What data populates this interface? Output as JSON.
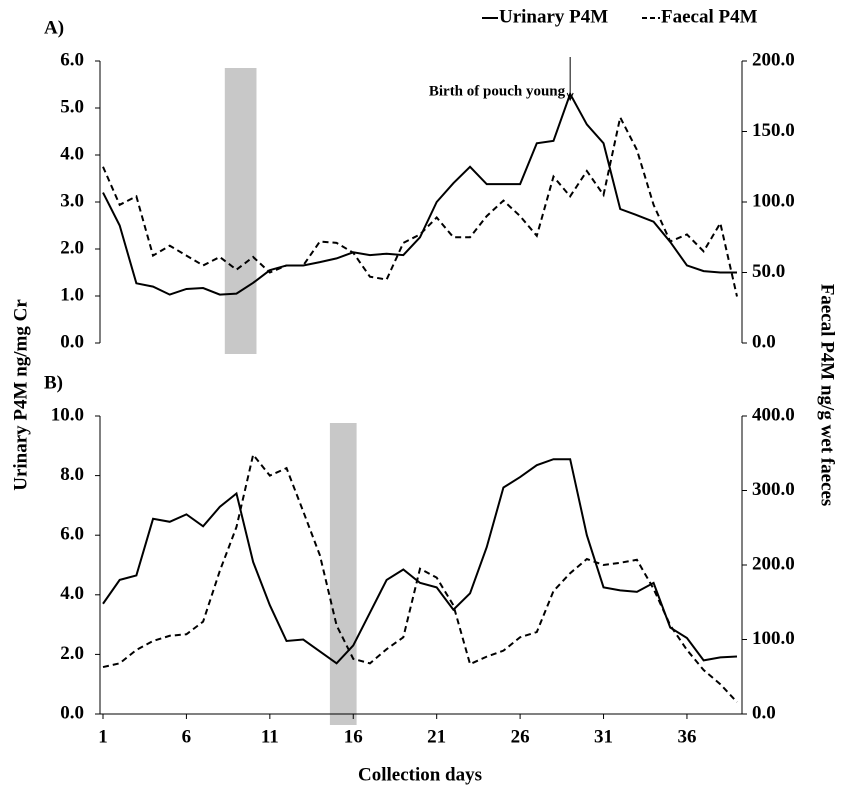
{
  "chart_data": [
    {
      "type": "line",
      "title": "A)",
      "ylabel": "Urinary P4M ng/mg Cr",
      "y2label": "Faecal P4M ng/g wet faeces",
      "x": [
        1,
        2,
        3,
        4,
        5,
        6,
        7,
        8,
        9,
        10,
        11,
        12,
        13,
        14,
        15,
        16,
        17,
        18,
        19,
        20,
        21,
        22,
        23,
        24,
        25,
        26,
        27,
        28,
        29,
        30,
        31,
        32,
        33,
        34,
        35,
        36,
        37,
        38,
        39
      ],
      "xlim": [
        1,
        39
      ],
      "ylim": [
        0,
        6
      ],
      "yticks": [
        {
          "value": 0,
          "label": "0.0"
        },
        {
          "value": 1,
          "label": "1.0"
        },
        {
          "value": 2,
          "label": "2.0"
        },
        {
          "value": 3,
          "label": "3.0"
        },
        {
          "value": 4,
          "label": "4.0"
        },
        {
          "value": 5,
          "label": "5.0"
        },
        {
          "value": 6,
          "label": "6.0"
        }
      ],
      "y2lim": [
        0,
        200
      ],
      "y2ticks": [
        {
          "value": 0,
          "label": "0.0"
        },
        {
          "value": 50,
          "label": "50.0"
        },
        {
          "value": 100,
          "label": "100.0"
        },
        {
          "value": 150,
          "label": "150.0"
        },
        {
          "value": 200,
          "label": "200.0"
        }
      ],
      "shade": [
        8.3,
        10.2
      ],
      "annotations": [
        {
          "text": "Birth of pouch young",
          "x": 29
        }
      ],
      "series": [
        {
          "name": "Urinary P4M",
          "color": "#000000",
          "style": "solid",
          "values": [
            3.2,
            2.5,
            1.27,
            1.2,
            1.03,
            1.15,
            1.17,
            1.03,
            1.05,
            1.28,
            1.55,
            1.65,
            1.65,
            1.72,
            1.8,
            1.93,
            1.87,
            1.9,
            1.87,
            2.25,
            3.0,
            3.4,
            3.75,
            3.38,
            3.38,
            3.38,
            4.25,
            4.3,
            5.3,
            4.65,
            4.25,
            2.85,
            2.72,
            2.58,
            2.15,
            1.65,
            1.53,
            1.5,
            1.5
          ]
        },
        {
          "name": "Faecal P4M",
          "color": "#000000",
          "style": "dashed",
          "axis": "y2",
          "values": [
            125,
            98,
            104,
            62,
            69,
            62,
            55,
            61,
            52,
            61,
            50,
            55,
            55,
            72,
            71,
            64,
            47,
            45,
            71,
            77,
            89,
            75,
            75,
            90,
            101,
            90,
            76,
            118,
            104,
            122,
            105,
            160,
            137,
            98,
            72,
            77,
            65,
            85,
            33
          ]
        }
      ]
    },
    {
      "type": "line",
      "title": "B)",
      "xlabel": "Collection days",
      "x": [
        1,
        2,
        3,
        4,
        5,
        6,
        7,
        8,
        9,
        10,
        11,
        12,
        13,
        14,
        15,
        16,
        17,
        18,
        19,
        20,
        21,
        22,
        23,
        24,
        25,
        26,
        27,
        28,
        29,
        30,
        31,
        32,
        33,
        34,
        35,
        36,
        37,
        38,
        39
      ],
      "xlim": [
        1,
        39
      ],
      "xticks": [
        1,
        6,
        11,
        16,
        21,
        26,
        31,
        36
      ],
      "ylim": [
        0,
        10
      ],
      "yticks": [
        {
          "value": 0,
          "label": "0.0"
        },
        {
          "value": 2,
          "label": "2.0"
        },
        {
          "value": 4,
          "label": "4.0"
        },
        {
          "value": 6,
          "label": "6.0"
        },
        {
          "value": 8,
          "label": "8.0"
        },
        {
          "value": 10,
          "label": "10.0"
        }
      ],
      "y2lim": [
        0,
        400
      ],
      "y2ticks": [
        {
          "value": 0,
          "label": "0.0"
        },
        {
          "value": 100,
          "label": "100.0"
        },
        {
          "value": 200,
          "label": "200.0"
        },
        {
          "value": 300,
          "label": "300.0"
        },
        {
          "value": 400,
          "label": "400.0"
        }
      ],
      "shade": [
        14.6,
        16.2
      ],
      "series": [
        {
          "name": "Urinary P4M",
          "color": "#000000",
          "style": "solid",
          "values": [
            3.7,
            4.5,
            4.65,
            6.55,
            6.45,
            6.7,
            6.3,
            6.95,
            7.4,
            5.1,
            3.65,
            2.45,
            2.5,
            2.1,
            1.7,
            2.3,
            3.4,
            4.5,
            4.85,
            4.4,
            4.25,
            3.5,
            4.05,
            5.6,
            7.6,
            7.95,
            8.35,
            8.55,
            8.55,
            6.0,
            4.25,
            4.15,
            4.1,
            4.4,
            2.9,
            2.55,
            1.8,
            1.9,
            1.93
          ]
        },
        {
          "name": "Faecal P4M",
          "color": "#000000",
          "style": "dashed",
          "axis": "y2",
          "values": [
            63,
            68,
            86,
            98,
            105,
            107,
            124,
            192,
            251,
            348,
            320,
            330,
            272,
            213,
            119,
            74,
            68,
            87,
            103,
            195,
            183,
            146,
            67,
            77,
            85,
            103,
            110,
            165,
            189,
            208,
            200,
            203,
            207,
            168,
            119,
            86,
            59,
            40,
            16
          ]
        }
      ]
    }
  ]
}
